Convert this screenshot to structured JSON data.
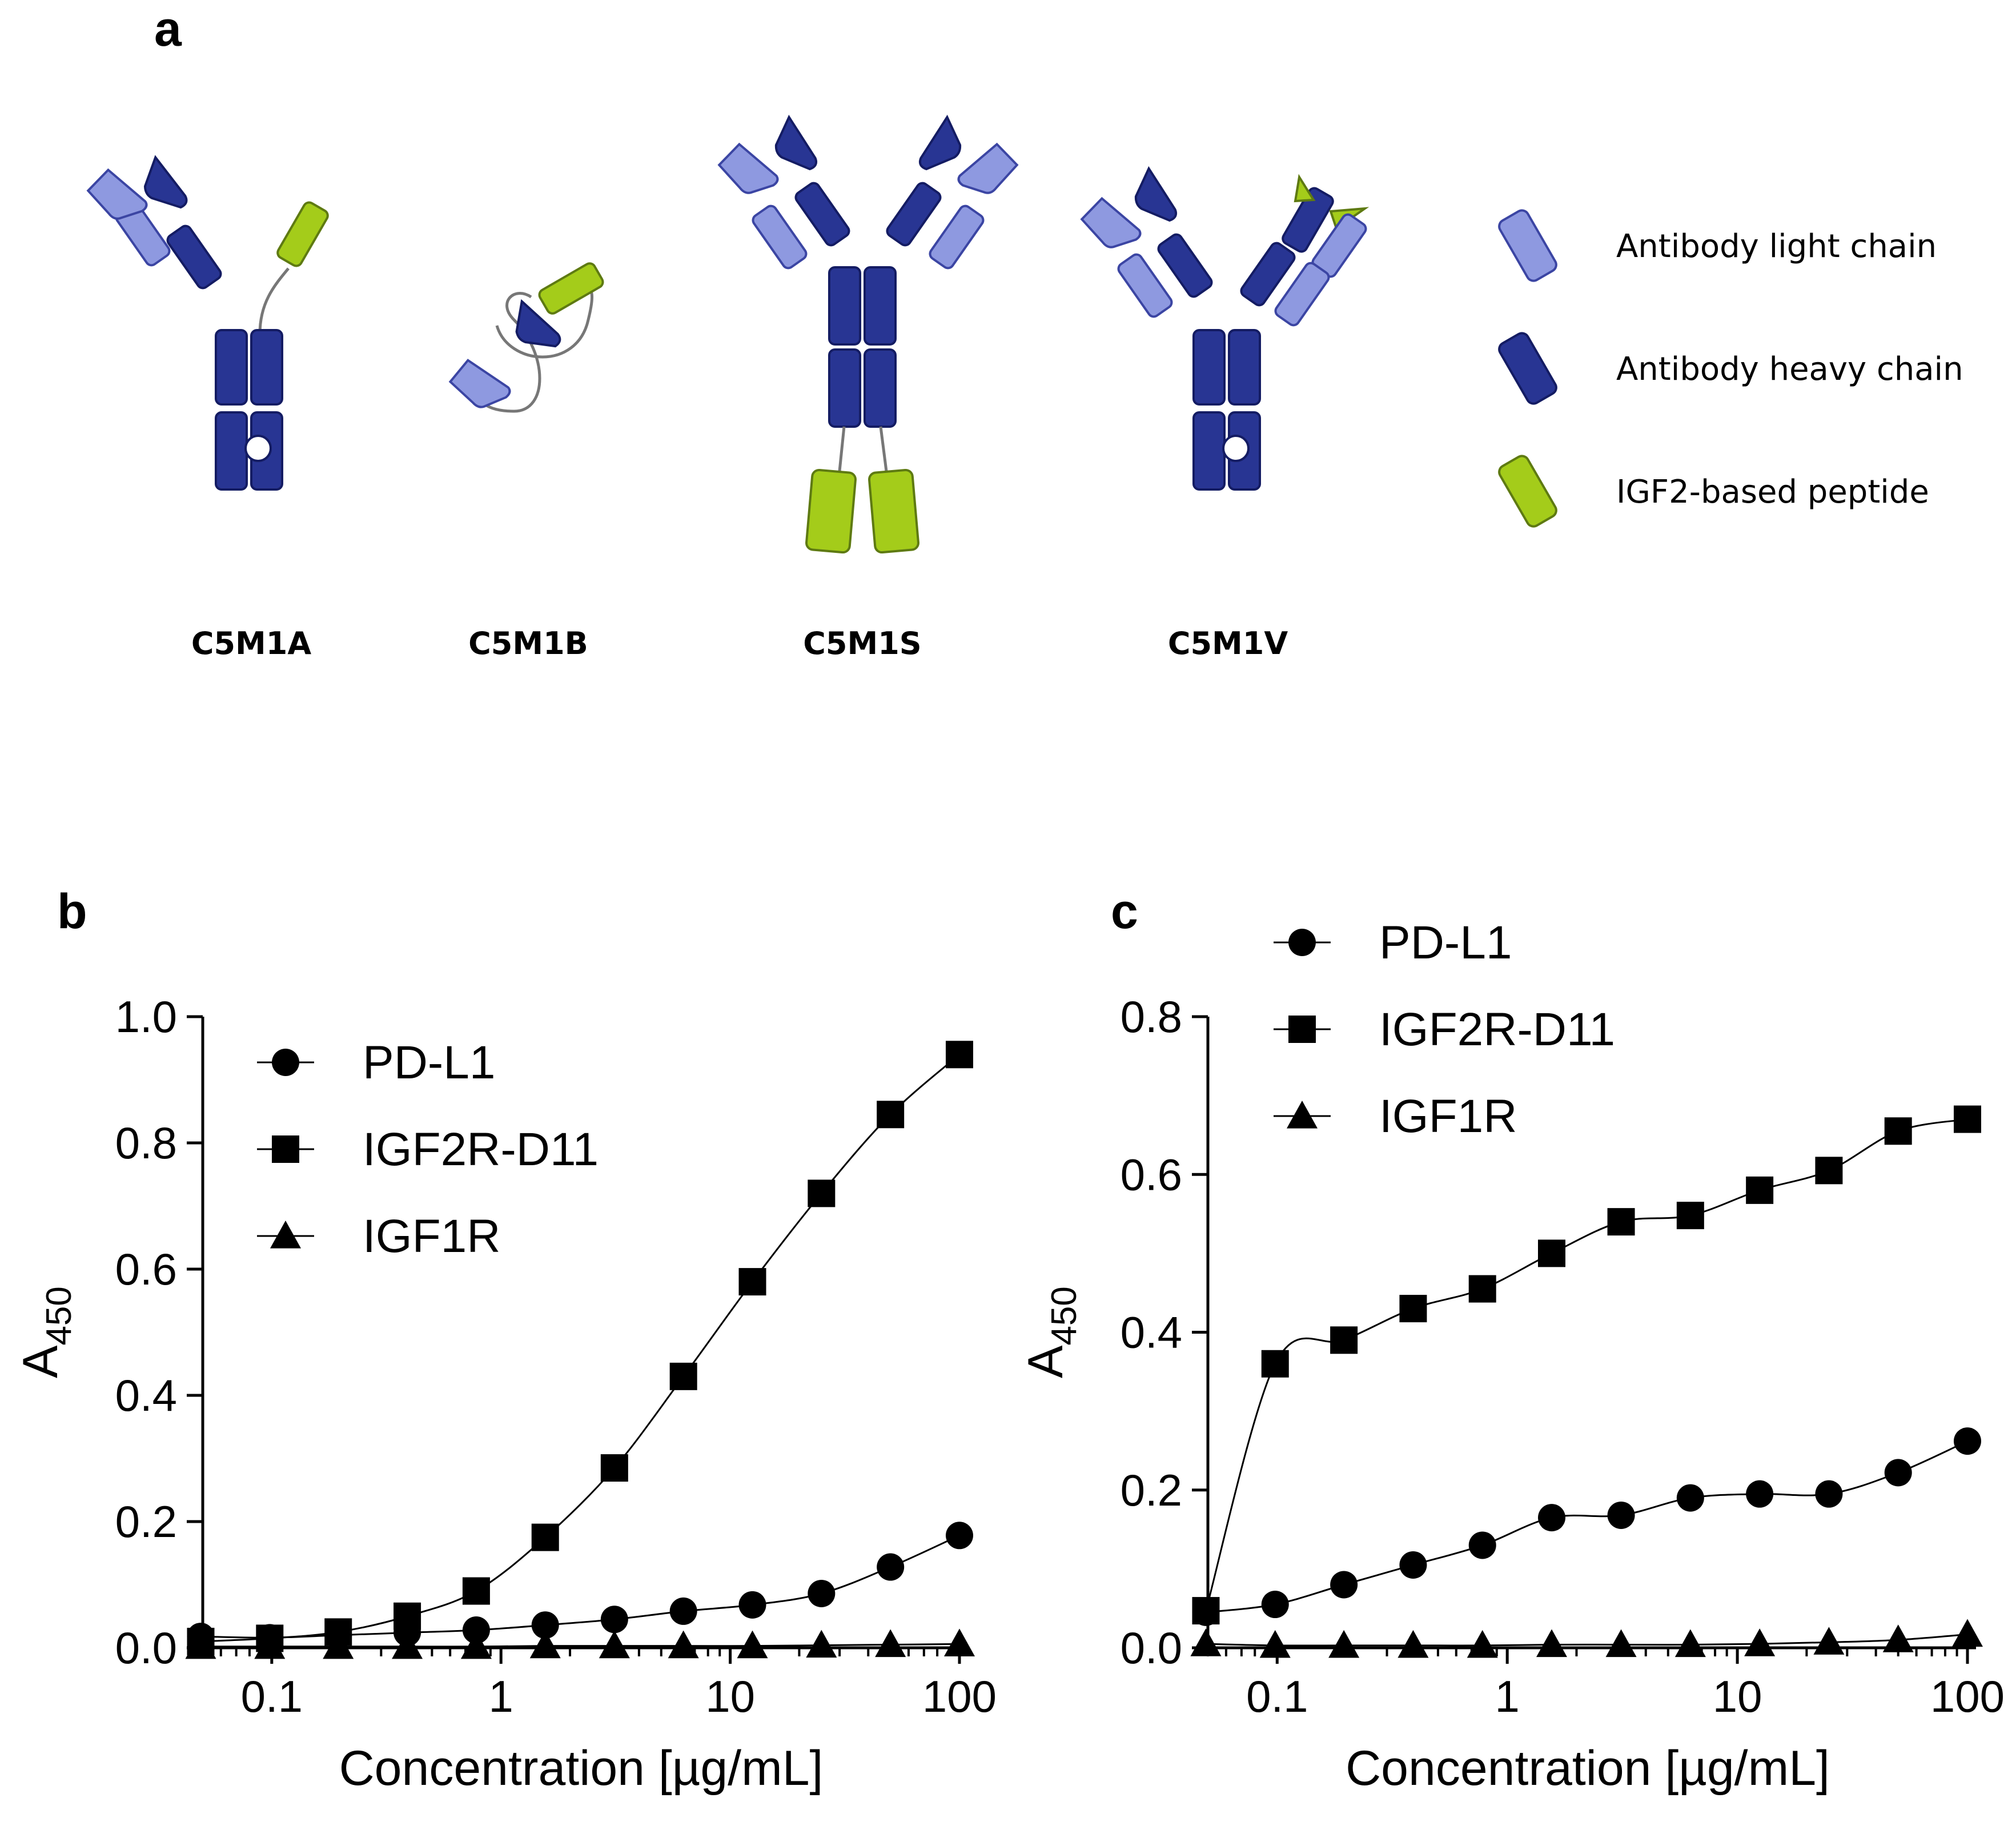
{
  "panels": {
    "a": "a",
    "b": "b",
    "c": "c"
  },
  "constructs": [
    "C5M1A",
    "C5M1B",
    "C5M1S",
    "C5M1V"
  ],
  "legend_a": [
    {
      "label": "Antibody light chain",
      "icon": "light-chain-icon"
    },
    {
      "label": "Antibody heavy chain",
      "icon": "heavy-chain-icon"
    },
    {
      "label": "IGF2-based peptide",
      "icon": "igf2-peptide-icon"
    }
  ],
  "colors": {
    "light_chain_fill": "#8E99E0",
    "light_chain_stroke": "#3B45A3",
    "heavy_chain_fill": "#283593",
    "heavy_chain_stroke": "#141C63",
    "peptide_fill": "#A4CC1A",
    "peptide_stroke": "#5E7A12",
    "linker": "#777777"
  },
  "chart_data": [
    {
      "type": "scatter",
      "title": "",
      "xlabel": "Concentration [µg/mL]",
      "ylabel_main": "A",
      "ylabel_sub": "450",
      "xscale": "log",
      "xlim": [
        0.05,
        100
      ],
      "ylim": [
        0,
        1.0
      ],
      "xticks": [
        0.1,
        1,
        10,
        100
      ],
      "xtick_labels": [
        "0.1",
        "1",
        "10",
        "100"
      ],
      "yticks": [
        0,
        0.2,
        0.4,
        0.6,
        0.8,
        1.0
      ],
      "ytick_labels": [
        "0.0",
        "0.2",
        "0.4",
        "0.6",
        "0.8",
        "1.0"
      ],
      "legend_position": "top-left",
      "x": [
        0.049,
        0.098,
        0.195,
        0.39,
        0.78,
        1.56,
        3.125,
        6.25,
        12.5,
        25,
        50,
        100
      ],
      "series": [
        {
          "name": "PD-L1",
          "marker": "circle",
          "values": [
            0.018,
            0.016,
            0.02,
            0.024,
            0.028,
            0.036,
            0.045,
            0.058,
            0.068,
            0.086,
            0.128,
            0.178
          ]
        },
        {
          "name": "IGF2R-D11",
          "marker": "square",
          "values": [
            0.01,
            0.015,
            0.025,
            0.05,
            0.09,
            0.175,
            0.285,
            0.43,
            0.58,
            0.72,
            0.845,
            0.94
          ]
        },
        {
          "name": "IGF1R",
          "marker": "triangle",
          "values": [
            0.002,
            0.002,
            0.002,
            0.002,
            0.002,
            0.003,
            0.003,
            0.003,
            0.003,
            0.004,
            0.005,
            0.006
          ]
        }
      ]
    },
    {
      "type": "scatter",
      "title": "",
      "xlabel": "Concentration [µg/mL]",
      "ylabel_main": "A",
      "ylabel_sub": "450",
      "xscale": "log",
      "xlim": [
        0.05,
        100
      ],
      "ylim": [
        0,
        0.8
      ],
      "xticks": [
        0.1,
        1,
        10,
        100
      ],
      "xtick_labels": [
        "0.1",
        "1",
        "10",
        "100"
      ],
      "yticks": [
        0,
        0.2,
        0.4,
        0.6,
        0.8
      ],
      "ytick_labels": [
        "0.0",
        "0.2",
        "0.4",
        "0.6",
        "0.8"
      ],
      "legend_position": "top-left",
      "x": [
        0.049,
        0.098,
        0.195,
        0.39,
        0.78,
        1.56,
        3.125,
        6.25,
        12.5,
        25,
        50,
        100
      ],
      "series": [
        {
          "name": "PD-L1",
          "marker": "circle",
          "values": [
            0.045,
            0.055,
            0.08,
            0.105,
            0.13,
            0.165,
            0.168,
            0.19,
            0.195,
            0.195,
            0.222,
            0.262
          ]
        },
        {
          "name": "IGF2R-D11",
          "marker": "square",
          "values": [
            0.047,
            0.36,
            0.39,
            0.43,
            0.455,
            0.5,
            0.54,
            0.548,
            0.58,
            0.605,
            0.655,
            0.67
          ]
        },
        {
          "name": "IGF1R",
          "marker": "triangle",
          "values": [
            0.005,
            0.003,
            0.003,
            0.003,
            0.003,
            0.004,
            0.004,
            0.004,
            0.005,
            0.007,
            0.01,
            0.017
          ]
        }
      ]
    }
  ]
}
